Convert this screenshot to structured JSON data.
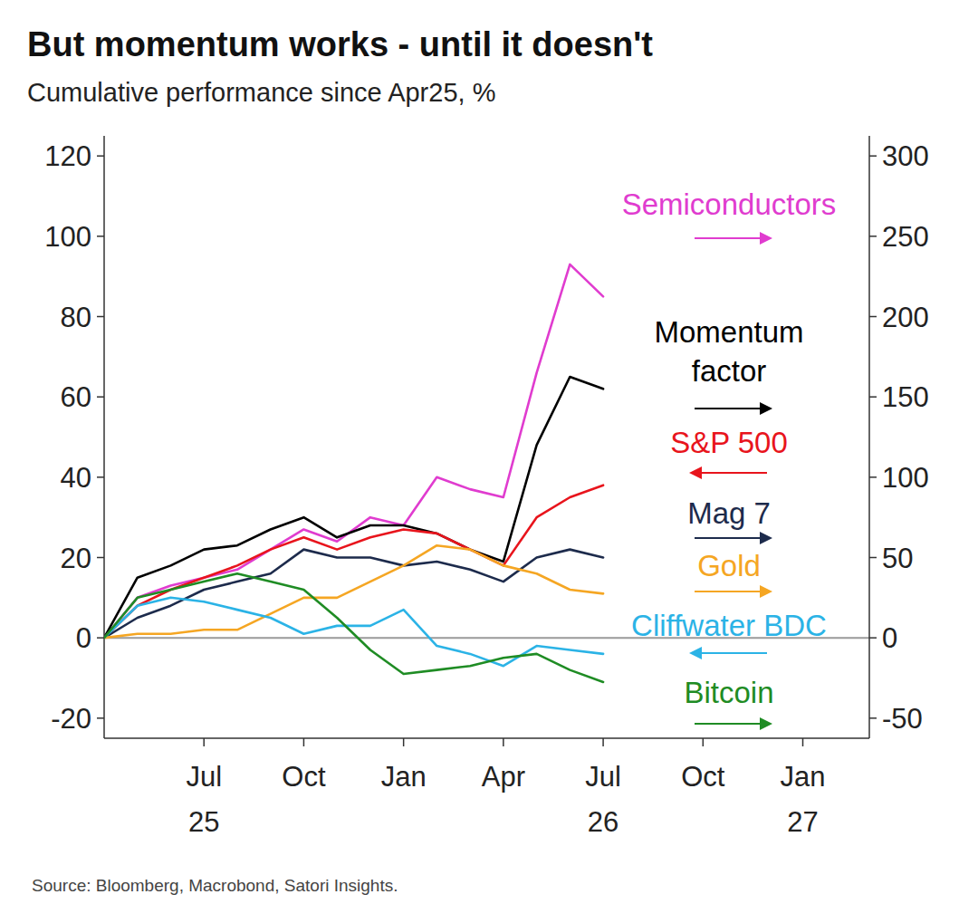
{
  "chart_data": {
    "type": "line",
    "title": "But momentum works - until it doesn't",
    "subtitle": "Cumulative performance since Apr25, %",
    "source": "Source: Bloomberg, Macrobond, Satori Insights.",
    "x": [
      "2025-04",
      "2025-05",
      "2025-06",
      "2025-07",
      "2025-08",
      "2025-09",
      "2025-10",
      "2025-11",
      "2025-12",
      "2026-01",
      "2026-02",
      "2026-03",
      "2026-04",
      "2026-05",
      "2026-06",
      "2026-07"
    ],
    "xlim": [
      "2025-04",
      "2027-03"
    ],
    "xticks": [
      {
        "value": "2025-07",
        "label": "Jul\n25"
      },
      {
        "value": "2025-10",
        "label": "Oct"
      },
      {
        "value": "2026-01",
        "label": "Jan"
      },
      {
        "value": "2026-04",
        "label": "Apr"
      },
      {
        "value": "2026-07",
        "label": "Jul\n26"
      },
      {
        "value": "2026-10",
        "label": "Oct"
      },
      {
        "value": "2027-01",
        "label": "Jan\n27"
      }
    ],
    "ylim": [
      -25,
      125
    ],
    "yticks": [
      -20,
      0,
      20,
      40,
      60,
      80,
      100,
      120
    ],
    "y2lim": [
      -62.5,
      312.5
    ],
    "y2ticks": [
      -50,
      0,
      50,
      100,
      150,
      200,
      250,
      300
    ],
    "grid": false,
    "legend": "right",
    "series": [
      {
        "name": "Semiconductors",
        "color": "#e03ccf",
        "axis": "y2",
        "values": [
          0,
          25,
          32.5,
          37.5,
          42.5,
          55,
          67.5,
          60,
          75,
          70,
          100,
          92.5,
          87.5,
          165,
          232.5,
          212.5
        ]
      },
      {
        "name": "Momentum factor",
        "color": "#000000",
        "axis": "y2",
        "values": [
          0,
          37.5,
          45,
          55,
          57.5,
          67.5,
          75,
          62.5,
          70,
          70,
          65,
          55,
          47.5,
          120,
          162.5,
          155
        ]
      },
      {
        "name": "S&P 500",
        "color": "#e8141c",
        "axis": "y",
        "values": [
          0,
          8,
          12,
          15,
          18,
          22,
          25,
          22,
          25,
          27,
          26,
          22,
          18,
          30,
          35,
          38
        ]
      },
      {
        "name": "Mag 7",
        "color": "#1d2b4c",
        "axis": "y2",
        "values": [
          0,
          12.5,
          20,
          30,
          35,
          40,
          55,
          50,
          50,
          45,
          47.5,
          42.5,
          35,
          50,
          55,
          50
        ]
      },
      {
        "name": "Gold",
        "color": "#f5a623",
        "axis": "y2",
        "values": [
          0,
          2.5,
          2.5,
          5,
          5,
          15,
          25,
          25,
          35,
          45,
          57.5,
          55,
          45,
          40,
          30,
          27.5
        ]
      },
      {
        "name": "Cliffwater BDC",
        "color": "#2bb3e6",
        "axis": "y",
        "values": [
          0,
          8,
          10,
          9,
          7,
          5,
          1,
          3,
          3,
          7,
          -2,
          -4,
          -7,
          -2,
          -3,
          -4
        ]
      },
      {
        "name": "Bitcoin",
        "color": "#1f8c24",
        "axis": "y2",
        "values": [
          0,
          25,
          30,
          35,
          40,
          35,
          30,
          12.5,
          -7.5,
          -22.5,
          -20,
          -17.5,
          -12.5,
          -10,
          -20,
          -27.5
        ]
      }
    ]
  }
}
